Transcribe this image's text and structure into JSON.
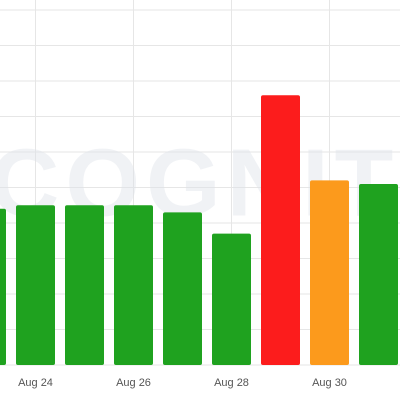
{
  "chart_data": {
    "type": "bar",
    "categories": [
      null,
      "Aug 24",
      null,
      "Aug 26",
      null,
      "Aug 28",
      null,
      "Aug 30",
      null
    ],
    "values": [
      4.4,
      4.5,
      4.5,
      4.5,
      4.3,
      3.7,
      7.6,
      5.2,
      5.1
    ],
    "colors": [
      "#1fa21f",
      "#1fa21f",
      "#1fa21f",
      "#1fa21f",
      "#1fa21f",
      "#1fa21f",
      "#fc1c1c",
      "#fc9a1c",
      "#1fa21f"
    ],
    "ylim": [
      0,
      10
    ],
    "yticks": [
      0,
      1,
      2,
      3,
      4,
      5,
      6,
      7,
      8,
      9,
      10
    ],
    "grid": true,
    "watermark": "COGNITIV"
  }
}
